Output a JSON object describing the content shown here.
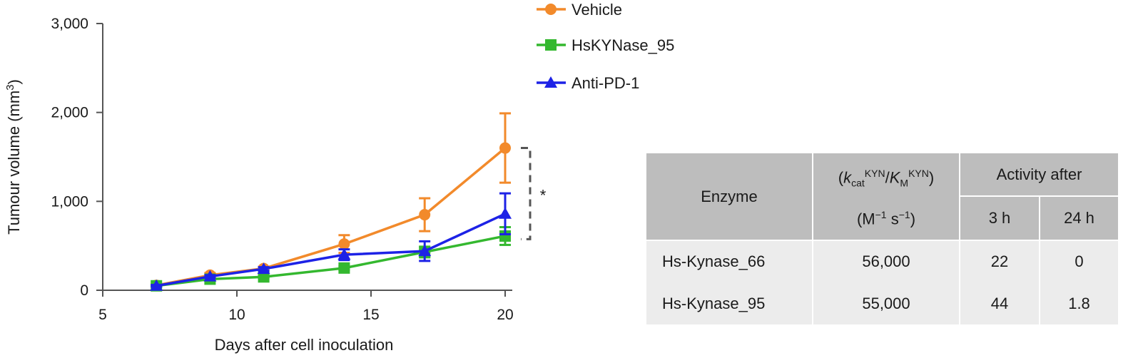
{
  "chart_data": {
    "type": "line",
    "xlabel": "Days after cell inoculation",
    "ylabel": "Tumour volume (mm",
    "ylabel_sup": "3",
    "ylabel_end": ")",
    "xlim": [
      5,
      20
    ],
    "ylim": [
      0,
      3000
    ],
    "x_ticks": [
      5,
      10,
      15,
      20
    ],
    "x_tick_labels": [
      "5",
      "10",
      "15",
      "20"
    ],
    "y_ticks": [
      0,
      1000,
      2000,
      3000
    ],
    "y_tick_labels": [
      "0",
      "1,000",
      "2,000",
      "3,000"
    ],
    "grid": false,
    "legend_placement": "top-right",
    "series": [
      {
        "name": "Vehicle",
        "color": "#f28a2b",
        "marker": "circle",
        "x": [
          7,
          9,
          11,
          14,
          17,
          20
        ],
        "y": [
          55,
          170,
          245,
          520,
          850,
          1600
        ],
        "err": [
          15,
          25,
          20,
          100,
          185,
          390
        ]
      },
      {
        "name": "HsKYNase_95",
        "color": "#34b82f",
        "marker": "square",
        "x": [
          7,
          9,
          11,
          14,
          17,
          20
        ],
        "y": [
          50,
          125,
          150,
          250,
          430,
          610
        ],
        "err": [
          10,
          15,
          15,
          20,
          60,
          100
        ]
      },
      {
        "name": "Anti-PD-1",
        "color": "#1d22e6",
        "marker": "triangle",
        "x": [
          7,
          9,
          11,
          14,
          17,
          20
        ],
        "y": [
          50,
          155,
          240,
          400,
          440,
          860
        ],
        "err": [
          10,
          15,
          20,
          60,
          110,
          230
        ]
      }
    ],
    "annotation": {
      "text": "*",
      "from_y": 1600,
      "to_y": 575
    }
  },
  "table": {
    "header": {
      "enzyme": "Enzyme",
      "kcat_k": "k",
      "kcat_sub": "cat",
      "kcat_sup": "KYN",
      "slash": "/",
      "km_k": "K",
      "km_sub": "M",
      "km_sup": "KYN",
      "units_m": "M",
      "units_m_sup": "−1",
      "units_s": " s",
      "units_s_sup": "−1",
      "activity_after": "Activity after",
      "col_3h": "3 h",
      "col_24h": "24 h"
    },
    "rows": [
      {
        "enzyme": "Hs-Kynase_66",
        "kcat_km": "56,000",
        "act_3h": "22",
        "act_24h": "0"
      },
      {
        "enzyme": "Hs-Kynase_95",
        "kcat_km": "55,000",
        "act_3h": "44",
        "act_24h": "1.8"
      }
    ]
  }
}
